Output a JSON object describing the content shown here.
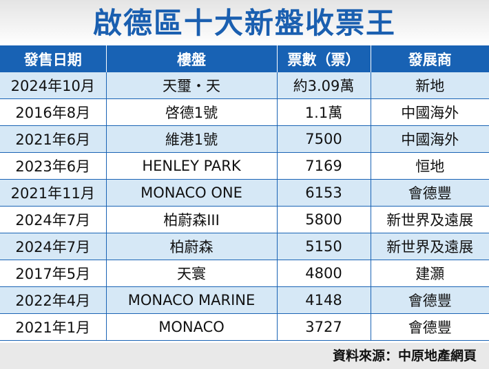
{
  "title": "啟德區十大新盤收票王",
  "table": {
    "headers": [
      "發售日期",
      "樓盤",
      "票數（票）",
      "發展商"
    ],
    "rows": [
      [
        "2024年10月",
        "天璽・天",
        "約3.09萬",
        "新地"
      ],
      [
        "2016年8月",
        "啓德1號",
        "1.1萬",
        "中國海外"
      ],
      [
        "2021年6月",
        "維港1號",
        "7500",
        "中國海外"
      ],
      [
        "2023年6月",
        "HENLEY PARK",
        "7169",
        "恒地"
      ],
      [
        "2021年11月",
        "MONACO ONE",
        "6153",
        "會德豐"
      ],
      [
        "2024年7月",
        "柏蔚森III",
        "5800",
        "新世界及遠展"
      ],
      [
        "2024年7月",
        "柏蔚森",
        "5150",
        "新世界及遠展"
      ],
      [
        "2017年5月",
        "天寰",
        "4800",
        "建灝"
      ],
      [
        "2022年4月",
        "MONACO MARINE",
        "4148",
        "會德豐"
      ],
      [
        "2021年1月",
        "MONACO",
        "3727",
        "會德豐"
      ]
    ]
  },
  "source": "資料來源：中原地產網頁",
  "colors": {
    "title": "#1a5fb0",
    "header_bg": "#1862b4",
    "stripe": "#d6e8f6"
  }
}
